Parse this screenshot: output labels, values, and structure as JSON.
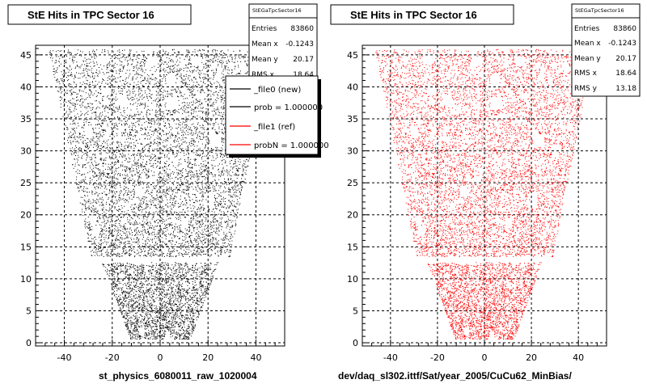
{
  "chart_data": [
    {
      "type": "scatter",
      "title": "StE Hits in TPC Sector 16",
      "xlabel": "st_physics_6080011_raw_1020004",
      "xlim": [
        -52,
        52
      ],
      "ylim": [
        -0.5,
        46.5
      ],
      "x_ticks": [
        -40,
        -20,
        0,
        20,
        40
      ],
      "y_ticks": [
        0,
        5,
        10,
        15,
        20,
        25,
        30,
        35,
        40,
        45
      ],
      "grid": true,
      "marker_color": "#000000",
      "stats": {
        "name": "StEGaTpcSector16",
        "rows": [
          {
            "label": "Entries",
            "value": "83860"
          },
          {
            "label": "Mean x",
            "value": "-0.1243"
          },
          {
            "label": "Mean y",
            "value": "20.17"
          },
          {
            "label": "RMS x",
            "value": "18.64"
          }
        ]
      },
      "legend": {
        "position": "top-right",
        "entries": [
          {
            "label": "_file0 (new)",
            "color": "#000000"
          },
          {
            "label": "prob = 1.000000",
            "color": "#000000"
          },
          {
            "label": "_file1 (ref)",
            "color": "#ff0000"
          },
          {
            "label": "probN = 1.000000",
            "color": "#ff0000"
          }
        ]
      }
    },
    {
      "type": "scatter",
      "title": "StE Hits in TPC Sector 16",
      "xlabel": "dev/daq_sl302.ittf/Sat/year_2005/CuCu62_MinBias/",
      "xlim": [
        -52,
        52
      ],
      "ylim": [
        -0.5,
        46.5
      ],
      "x_ticks": [
        -40,
        -20,
        0,
        20,
        40
      ],
      "y_ticks": [
        0,
        5,
        10,
        15,
        20,
        25,
        30,
        35,
        40,
        45
      ],
      "grid": true,
      "marker_color": "#ff0000",
      "stats": {
        "name": "StEGaTpcSector16",
        "rows": [
          {
            "label": "Entries",
            "value": "83860"
          },
          {
            "label": "Mean x",
            "value": "-0.1243"
          },
          {
            "label": "Mean y",
            "value": "20.17"
          },
          {
            "label": "RMS x",
            "value": "18.64"
          },
          {
            "label": "RMS y",
            "value": "13.18"
          }
        ]
      }
    }
  ]
}
